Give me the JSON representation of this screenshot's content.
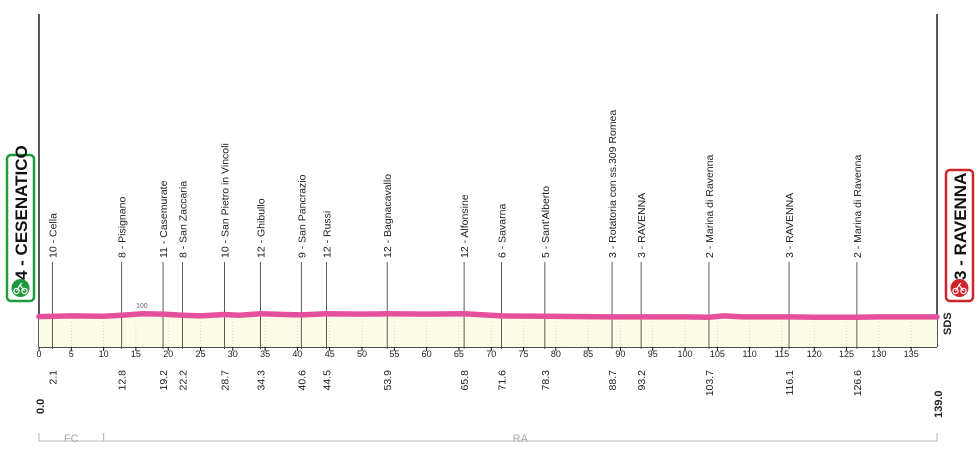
{
  "start_city": "4 - CESENATICO",
  "end_city": "3 - RAVENNA",
  "start_color": "#1e9a3c",
  "end_color": "#d0242a",
  "profile_color": "#e4509c",
  "fill_color": "#fbfbe6",
  "elevation_label": "100",
  "logo_text": "SDS",
  "regions": [
    {
      "code": "FC",
      "from": 0,
      "to": 10
    },
    {
      "code": "RA",
      "from": 10,
      "to": 139
    }
  ],
  "chart_data": {
    "type": "area",
    "total_km": 139.0,
    "x_ticks": [
      0,
      5,
      10,
      15,
      20,
      25,
      30,
      35,
      40,
      45,
      50,
      55,
      60,
      65,
      70,
      75,
      80,
      85,
      90,
      95,
      100,
      105,
      110,
      115,
      120,
      125,
      130,
      135
    ],
    "start_km_label": "0.0",
    "end_km_label": "139.0",
    "profile": [
      {
        "km": 0,
        "alt": 4
      },
      {
        "km": 5,
        "alt": 6
      },
      {
        "km": 10,
        "alt": 5
      },
      {
        "km": 12.8,
        "alt": 8
      },
      {
        "km": 16,
        "alt": 12
      },
      {
        "km": 19.2,
        "alt": 11
      },
      {
        "km": 22.2,
        "alt": 8
      },
      {
        "km": 25,
        "alt": 6
      },
      {
        "km": 28.7,
        "alt": 10
      },
      {
        "km": 31,
        "alt": 8
      },
      {
        "km": 34.3,
        "alt": 12
      },
      {
        "km": 38,
        "alt": 10
      },
      {
        "km": 40.6,
        "alt": 9
      },
      {
        "km": 44.5,
        "alt": 12
      },
      {
        "km": 50,
        "alt": 11
      },
      {
        "km": 53.9,
        "alt": 12
      },
      {
        "km": 60,
        "alt": 11
      },
      {
        "km": 65.8,
        "alt": 12
      },
      {
        "km": 71.6,
        "alt": 6
      },
      {
        "km": 78.3,
        "alt": 5
      },
      {
        "km": 84,
        "alt": 4
      },
      {
        "km": 88.7,
        "alt": 3
      },
      {
        "km": 93.2,
        "alt": 3
      },
      {
        "km": 100,
        "alt": 3
      },
      {
        "km": 103.7,
        "alt": 2
      },
      {
        "km": 106,
        "alt": 6
      },
      {
        "km": 109,
        "alt": 3
      },
      {
        "km": 116.1,
        "alt": 3
      },
      {
        "km": 120,
        "alt": 2
      },
      {
        "km": 126.6,
        "alt": 2
      },
      {
        "km": 130,
        "alt": 3
      },
      {
        "km": 139,
        "alt": 3
      }
    ],
    "waypoints": [
      {
        "km": 2.1,
        "km_label": "2.1",
        "label": "10 - Cella"
      },
      {
        "km": 12.8,
        "km_label": "12.8",
        "label": "8 - Pisignano"
      },
      {
        "km": 19.2,
        "km_label": "19.2",
        "label": "11 - Casemurate"
      },
      {
        "km": 22.2,
        "km_label": "22.2",
        "label": "8 - San Zaccaria"
      },
      {
        "km": 28.7,
        "km_label": "28.7",
        "label": "10 - San Pietro in Vincoli"
      },
      {
        "km": 34.3,
        "km_label": "34.3",
        "label": "12 - Ghibullo"
      },
      {
        "km": 40.6,
        "km_label": "40.6",
        "label": "9 - San Pancrazio"
      },
      {
        "km": 44.5,
        "km_label": "44.5",
        "label": "12 - Russi"
      },
      {
        "km": 53.9,
        "km_label": "53.9",
        "label": "12 - Bagnacavallo"
      },
      {
        "km": 65.8,
        "km_label": "65.8",
        "label": "12 - Alfonsine"
      },
      {
        "km": 71.6,
        "km_label": "71.6",
        "label": "6 - Savarna"
      },
      {
        "km": 78.3,
        "km_label": "78.3",
        "label": "5 - Sant'Alberto"
      },
      {
        "km": 88.7,
        "km_label": "88.7",
        "label": "3 - Rotatoria con ss.309 Romea"
      },
      {
        "km": 93.2,
        "km_label": "93.2",
        "label": "3 - RAVENNA"
      },
      {
        "km": 103.7,
        "km_label": "103.7",
        "label": "2 - Marina di Ravenna"
      },
      {
        "km": 116.1,
        "km_label": "116.1",
        "label": "3 - RAVENNA"
      },
      {
        "km": 126.6,
        "km_label": "126.6",
        "label": "2 - Marina di Ravenna"
      }
    ]
  }
}
